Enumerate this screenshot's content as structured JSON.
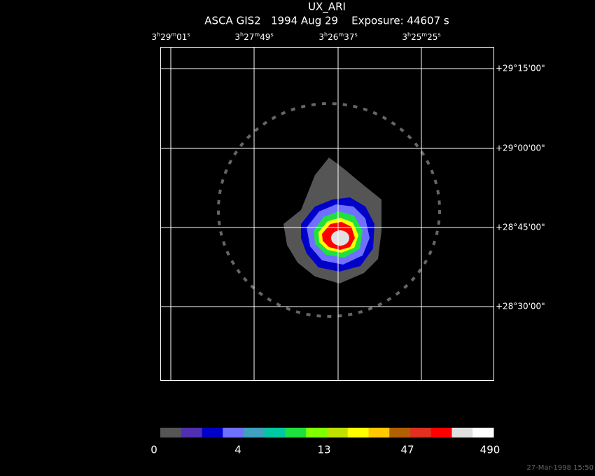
{
  "header": {
    "title": "UX_ARI",
    "subtitle": "ASCA GIS2   1994 Aug 29    Exposure: 44607 s"
  },
  "ra_labels": [
    [
      "3",
      "h",
      "29",
      "m",
      "01",
      "s"
    ],
    [
      "3",
      "h",
      "27",
      "m",
      "49",
      "s"
    ],
    [
      "3",
      "h",
      "26",
      "m",
      "37",
      "s"
    ],
    [
      "3",
      "h",
      "25",
      "m",
      "25",
      "s"
    ]
  ],
  "dec_labels": [
    "+29°15'00\"",
    "+29°00'00\"",
    "+28°45'00\"",
    "+28°30'00\""
  ],
  "colorbar": {
    "colors": [
      "#555555",
      "#5030b0",
      "#0000c8",
      "#7070ff",
      "#40a0c0",
      "#00c8a0",
      "#20e040",
      "#80ff00",
      "#c0e000",
      "#ffff00",
      "#ffc800",
      "#b06000",
      "#e03020",
      "#ff0000",
      "#e0e0e0",
      "#ffffff"
    ],
    "labels": [
      0,
      4,
      13,
      47,
      490
    ]
  },
  "timestamp": "27-Mar-1998 15:50"
}
